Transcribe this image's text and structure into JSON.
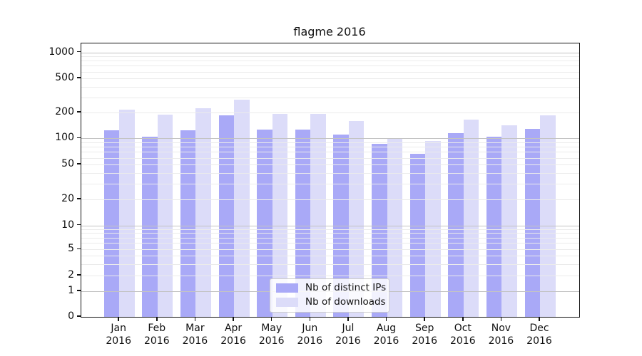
{
  "chart_data": {
    "type": "bar",
    "title": "flagme 2016",
    "year": "2016",
    "categories": [
      "Jan",
      "Feb",
      "Mar",
      "Apr",
      "May",
      "Jun",
      "Jul",
      "Aug",
      "Sep",
      "Oct",
      "Nov",
      "Dec"
    ],
    "series": [
      {
        "name": "Nb of distinct IPs",
        "color": "#a9a9f7",
        "values": [
          124,
          105,
          124,
          187,
          128,
          126,
          110,
          86,
          66,
          115,
          105,
          129
        ]
      },
      {
        "name": "Nb of downloads",
        "color": "#dcdcf9",
        "values": [
          216,
          190,
          226,
          281,
          193,
          194,
          159,
          101,
          94,
          165,
          142,
          186
        ]
      }
    ],
    "xlabel": "",
    "ylabel": "",
    "y_axis_scale": "symlog",
    "ylim": [
      0,
      1000
    ],
    "y_ticks": [
      1000,
      500,
      200,
      100,
      50,
      20,
      10,
      5,
      2,
      1,
      0
    ],
    "y_major_gridlines": [
      1,
      10,
      100,
      1000
    ],
    "y_minor_gridlines": [
      2,
      3,
      4,
      5,
      6,
      7,
      8,
      9,
      20,
      30,
      40,
      50,
      60,
      70,
      80,
      90,
      200,
      300,
      400,
      500,
      600,
      700,
      800,
      900
    ],
    "grid": true,
    "legend_position": "lower center",
    "colors": {
      "bar_distinct_ips": "#a9a9f7",
      "bar_downloads": "#dcdcf9",
      "major_gridline": "#c3c3c3",
      "minor_gridline": "#ebebeb",
      "axis": "#111111",
      "text": "#111111",
      "legend_border": "#cccccc"
    }
  }
}
